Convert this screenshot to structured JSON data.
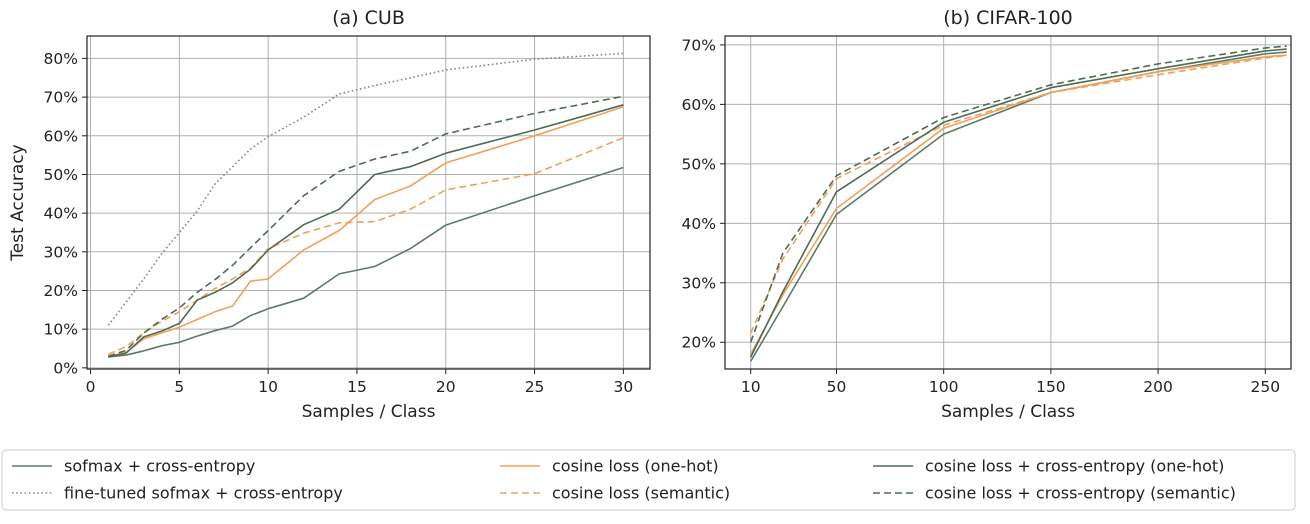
{
  "chart_data": [
    {
      "type": "line",
      "title": "(a) CUB",
      "xlabel": "Samples / Class",
      "ylabel": "Test Accuracy",
      "xlim": [
        -0.2,
        31.5
      ],
      "ylim": [
        -0.3,
        85.8
      ],
      "xticks": [
        0,
        5,
        10,
        15,
        20,
        25,
        30
      ],
      "yticks": [
        0,
        10,
        20,
        30,
        40,
        50,
        60,
        70,
        80
      ],
      "ytick_labels": [
        "0%",
        "10%",
        "20%",
        "30%",
        "40%",
        "50%",
        "60%",
        "70%",
        "80%"
      ],
      "grid": true,
      "series": [
        {
          "key": "softmax",
          "x": [
            1,
            2,
            3,
            4,
            5,
            6,
            7,
            8,
            9,
            10,
            12,
            14,
            16,
            18,
            20,
            25,
            30
          ],
          "y": [
            2.8,
            3.3,
            4.4,
            5.7,
            6.6,
            8.2,
            9.6,
            10.8,
            13.5,
            15.3,
            18.0,
            24.3,
            26.2,
            30.8,
            36.9,
            44.5,
            51.8
          ]
        },
        {
          "key": "finetuned",
          "x": [
            1,
            2,
            3,
            4,
            5,
            6,
            7,
            8,
            9,
            10,
            12,
            14,
            16,
            18,
            20,
            25,
            30
          ],
          "y": [
            11.0,
            17.0,
            23.0,
            29.5,
            35.0,
            40.5,
            47.5,
            52.0,
            56.5,
            59.8,
            64.8,
            70.8,
            73.0,
            75.0,
            77.0,
            79.8,
            81.3
          ]
        },
        {
          "key": "cos_onehot",
          "x": [
            1,
            2,
            3,
            4,
            5,
            6,
            7,
            8,
            9,
            10,
            12,
            14,
            16,
            18,
            20,
            25,
            30
          ],
          "y": [
            3.0,
            4.0,
            7.5,
            9.0,
            10.5,
            12.5,
            14.5,
            16.0,
            22.4,
            23.0,
            30.5,
            35.5,
            43.5,
            47.0,
            53.0,
            60.0,
            67.5
          ]
        },
        {
          "key": "cos_semantic",
          "x": [
            1,
            2,
            3,
            4,
            5,
            6,
            7,
            8,
            9,
            10,
            12,
            14,
            16,
            18,
            20,
            25,
            30
          ],
          "y": [
            3.5,
            5.5,
            9.0,
            12.0,
            14.5,
            17.5,
            20.5,
            23.0,
            25.8,
            30.8,
            34.8,
            37.5,
            37.8,
            41.0,
            46.0,
            50.2,
            59.5
          ]
        },
        {
          "key": "cosce_onehot",
          "x": [
            1,
            2,
            3,
            4,
            5,
            6,
            7,
            8,
            9,
            10,
            12,
            14,
            16,
            18,
            20,
            25,
            30
          ],
          "y": [
            2.8,
            3.8,
            8.0,
            9.5,
            11.5,
            17.5,
            19.5,
            22.0,
            25.5,
            30.5,
            37.0,
            41.0,
            50.0,
            52.0,
            55.5,
            61.5,
            68.0
          ]
        },
        {
          "key": "cosce_semantic",
          "x": [
            1,
            2,
            3,
            4,
            5,
            6,
            7,
            8,
            9,
            10,
            12,
            14,
            16,
            18,
            20,
            25,
            30
          ],
          "y": [
            3.0,
            4.5,
            9.0,
            12.5,
            15.5,
            19.5,
            22.8,
            26.5,
            31.0,
            35.5,
            44.5,
            50.8,
            54.0,
            56.0,
            60.5,
            65.8,
            70.2
          ]
        }
      ]
    },
    {
      "type": "line",
      "title": "(b) CIFAR-100",
      "xlabel": "Samples / Class",
      "ylabel": "",
      "xlim": [
        -2,
        262
      ],
      "ylim": [
        15.5,
        71.5
      ],
      "xticks": [
        10,
        50,
        100,
        150,
        200,
        250
      ],
      "yticks": [
        20,
        30,
        40,
        50,
        60,
        70
      ],
      "ytick_labels": [
        "20%",
        "30%",
        "40%",
        "50%",
        "60%",
        "70%"
      ],
      "grid": true,
      "series": [
        {
          "key": "softmax",
          "x": [
            10,
            25,
            50,
            100,
            150,
            200,
            250,
            260
          ],
          "y": [
            16.8,
            26.0,
            41.5,
            55.0,
            62.0,
            65.5,
            68.5,
            68.8
          ]
        },
        {
          "key": "cos_onehot",
          "x": [
            10,
            25,
            50,
            100,
            150,
            200,
            250,
            260
          ],
          "y": [
            18.0,
            28.0,
            42.5,
            56.0,
            62.0,
            65.5,
            68.0,
            68.3
          ]
        },
        {
          "key": "cos_semantic",
          "x": [
            10,
            25,
            50,
            100,
            150,
            200,
            250,
            260
          ],
          "y": [
            21.5,
            34.0,
            47.5,
            56.5,
            62.0,
            65.0,
            67.8,
            68.2
          ]
        },
        {
          "key": "cosce_onehot",
          "x": [
            10,
            25,
            50,
            100,
            150,
            200,
            250,
            260
          ],
          "y": [
            17.5,
            28.5,
            45.3,
            57.0,
            62.8,
            66.0,
            69.0,
            69.3
          ]
        },
        {
          "key": "cosce_semantic",
          "x": [
            10,
            25,
            50,
            100,
            150,
            200,
            250,
            260
          ],
          "y": [
            20.0,
            35.0,
            48.0,
            57.8,
            63.3,
            66.8,
            69.5,
            69.8
          ]
        }
      ]
    }
  ],
  "legend": {
    "placement": "bottom",
    "entries": [
      {
        "key": "softmax",
        "label": "sofmax + cross-entropy",
        "color": "#5f7a66",
        "dash": "solid"
      },
      {
        "key": "cos_onehot",
        "label": "cosine loss (one-hot)",
        "color": "#f0a15b",
        "dash": "solid"
      },
      {
        "key": "cosce_onehot",
        "label": "cosine loss + cross-entropy (one-hot)",
        "color": "#4e6b54",
        "dash": "solid"
      },
      {
        "key": "finetuned",
        "label": "fine-tuned sofmax + cross-entropy",
        "color": "#888888",
        "dash": "dotted"
      },
      {
        "key": "cos_semantic",
        "label": "cosine loss (semantic)",
        "color": "#f0a15b",
        "dash": "dashed"
      },
      {
        "key": "cosce_semantic",
        "label": "cosine loss + cross-entropy (semantic)",
        "color": "#4e6b54",
        "dash": "dashed"
      }
    ]
  }
}
